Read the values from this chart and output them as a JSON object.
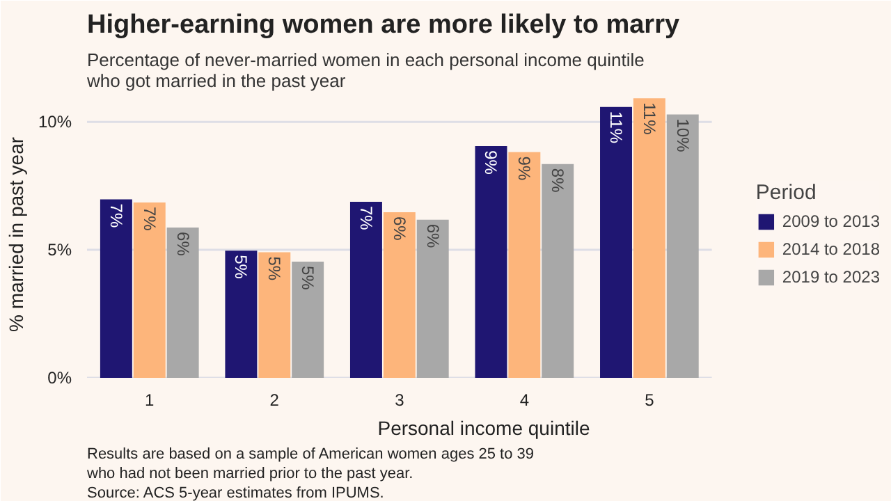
{
  "chart_data": {
    "type": "bar",
    "title": "Higher-earning women are more likely to marry",
    "subtitle": "Percentage of never-married women in each personal income quintile who got married in the past year",
    "xlabel": "Personal income quintile",
    "ylabel": "% married in past year",
    "legend_title": "Period",
    "categories": [
      "1",
      "2",
      "3",
      "4",
      "5"
    ],
    "series": [
      {
        "name": "2009 to 2013",
        "color": "#1f1672",
        "values": [
          6.97,
          4.97,
          6.88,
          9.05,
          10.58
        ],
        "value_labels": [
          "7%",
          "5%",
          "7%",
          "9%",
          "11%"
        ]
      },
      {
        "name": "2014 to 2018",
        "color": "#fdb57b",
        "values": [
          6.85,
          4.91,
          6.47,
          8.82,
          10.92
        ],
        "value_labels": [
          "7%",
          "5%",
          "6%",
          "9%",
          "11%"
        ]
      },
      {
        "name": "2019 to 2023",
        "color": "#a8a8a8",
        "values": [
          5.87,
          4.54,
          6.18,
          8.35,
          10.29
        ],
        "value_labels": [
          "6%",
          "5%",
          "6%",
          "8%",
          "10%"
        ]
      }
    ],
    "ylim": [
      0,
      11.2
    ],
    "yticks": [
      {
        "value": 0,
        "label": "0%"
      },
      {
        "value": 5,
        "label": "5%"
      },
      {
        "value": 10,
        "label": "10%"
      }
    ],
    "grid": "y",
    "legend": "right",
    "annotations": [
      "Results are based on a sample of American women ages 25 to 39 who had not been married prior to the past year.",
      "Source: ACS 5-year estimates from IPUMS."
    ]
  }
}
